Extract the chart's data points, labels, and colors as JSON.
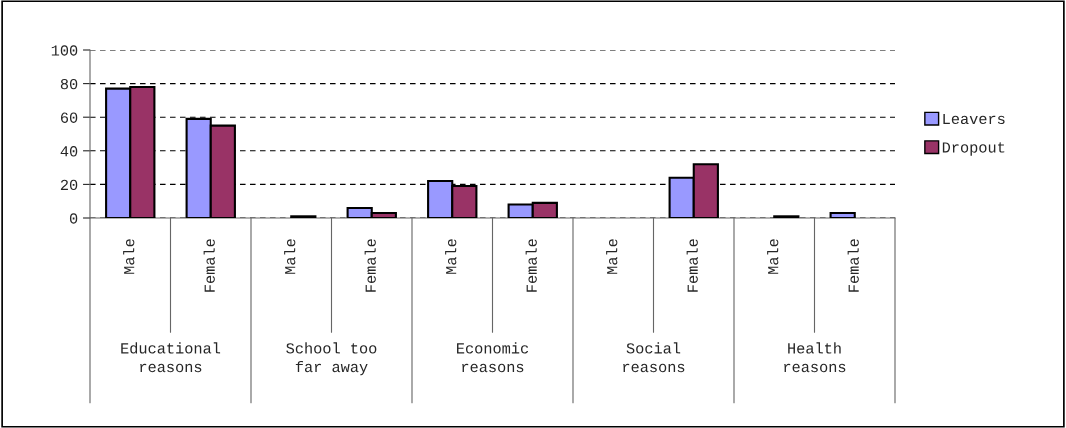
{
  "chart_data": {
    "type": "bar",
    "categories": [
      "Male",
      "Female",
      "Male",
      "Female",
      "Male",
      "Female",
      "Male",
      "Female",
      "Male",
      "Female"
    ],
    "series": [
      {
        "name": "Leavers",
        "color": "#9999ff",
        "values": [
          77,
          59,
          null,
          6,
          22,
          8,
          null,
          24,
          null,
          3
        ]
      },
      {
        "name": "Dropout",
        "color": "#993366",
        "values": [
          78,
          55,
          1,
          3,
          19,
          9,
          null,
          32,
          1,
          null
        ]
      }
    ],
    "annotations": [
      "Educational\nreasons",
      "School too\nfar away",
      "Economic\nreasons",
      "Social\nreasons",
      "Health\nreasons"
    ],
    "ylim": [
      0,
      100
    ],
    "yticks": [
      0,
      20,
      40,
      60,
      80,
      100
    ],
    "grid": "y",
    "legend": "right"
  }
}
